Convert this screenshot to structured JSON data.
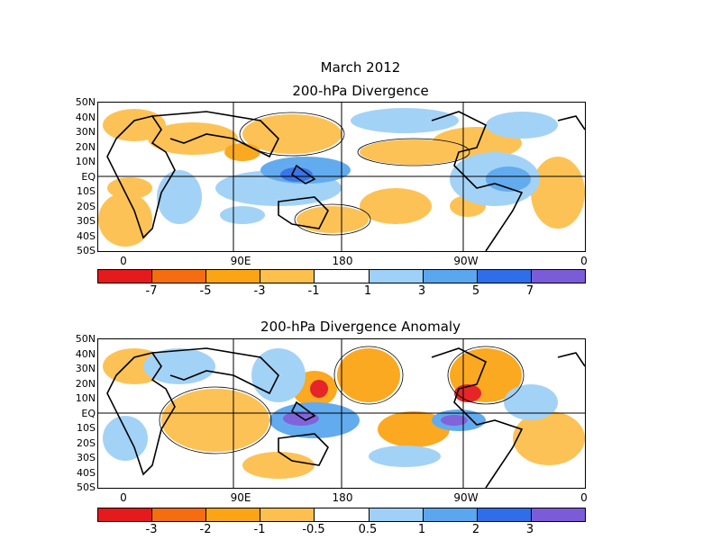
{
  "title": "March 2012",
  "panels": [
    {
      "title": "200-hPa Divergence",
      "lat_labels": [
        "50N",
        "40N",
        "30N",
        "20N",
        "10N",
        "EQ",
        "10S",
        "20S",
        "30S",
        "40S",
        "50S"
      ],
      "lon_labels": [
        "0",
        "90E",
        "180",
        "90W",
        "0"
      ],
      "colorbar_labels": [
        "-7",
        "-5",
        "-3",
        "-1",
        "1",
        "3",
        "5",
        "7"
      ],
      "colorbar_colors": [
        "#e41a1c",
        "#f46d0f",
        "#fba515",
        "#fdbf4d",
        "#ffffff",
        "#9fd0f7",
        "#5aa7ef",
        "#2f6ee8",
        "#7b5cd8"
      ]
    },
    {
      "title": "200-hPa Divergence Anomaly",
      "lat_labels": [
        "50N",
        "40N",
        "30N",
        "20N",
        "10N",
        "EQ",
        "10S",
        "20S",
        "30S",
        "40S",
        "50S"
      ],
      "lon_labels": [
        "0",
        "90E",
        "180",
        "90W",
        "0"
      ],
      "colorbar_labels": [
        "-3",
        "-2",
        "-1",
        "-0.5",
        "0.5",
        "1",
        "2",
        "3"
      ],
      "colorbar_colors": [
        "#e41a1c",
        "#f46d0f",
        "#fba515",
        "#fdbf4d",
        "#ffffff",
        "#9fd0f7",
        "#5aa7ef",
        "#2f6ee8",
        "#7b5cd8"
      ]
    }
  ]
}
